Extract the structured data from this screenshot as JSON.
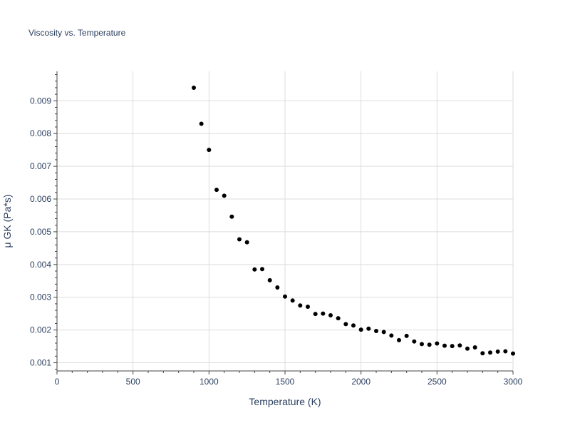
{
  "chart_data": {
    "type": "scatter",
    "title": "Viscosity vs. Temperature",
    "xlabel": "Temperature (K)",
    "ylabel": "μ GK (Pa*s)",
    "xlim": [
      0,
      3000
    ],
    "ylim": [
      0.00075,
      0.0099
    ],
    "x_ticks": [
      0,
      500,
      1000,
      1500,
      2000,
      2500,
      3000
    ],
    "x_tick_labels": [
      "0",
      "500",
      "1000",
      "1500",
      "2000",
      "2500",
      "3000"
    ],
    "y_ticks": [
      0.001,
      0.002,
      0.003,
      0.004,
      0.005,
      0.006,
      0.007,
      0.008,
      0.009
    ],
    "y_tick_labels": [
      "0.001",
      "0.002",
      "0.003",
      "0.004",
      "0.005",
      "0.006",
      "0.007",
      "0.008",
      "0.009"
    ],
    "grid": true,
    "marker_color": "#000000",
    "series": [
      {
        "x": [
          900,
          950,
          1000,
          1050,
          1100,
          1150,
          1200,
          1250,
          1300,
          1350,
          1400,
          1450,
          1500,
          1550,
          1600,
          1650,
          1700,
          1750,
          1800,
          1850,
          1900,
          1950,
          2000,
          2050,
          2100,
          2150,
          2200,
          2250,
          2300,
          2350,
          2400,
          2450,
          2500,
          2550,
          2600,
          2650,
          2700,
          2750,
          2800,
          2850,
          2900,
          2950,
          3000
        ],
        "y": [
          0.0094,
          0.0083,
          0.0075,
          0.00628,
          0.0061,
          0.00546,
          0.00477,
          0.00468,
          0.00385,
          0.00386,
          0.00352,
          0.0033,
          0.00302,
          0.0029,
          0.00275,
          0.00271,
          0.00249,
          0.0025,
          0.00245,
          0.00236,
          0.00218,
          0.00214,
          0.00201,
          0.00204,
          0.00197,
          0.00194,
          0.00183,
          0.00169,
          0.00182,
          0.00165,
          0.00157,
          0.00155,
          0.00159,
          0.00152,
          0.00151,
          0.00153,
          0.00143,
          0.00147,
          0.00129,
          0.00131,
          0.00134,
          0.00135,
          0.00128
        ]
      }
    ]
  }
}
